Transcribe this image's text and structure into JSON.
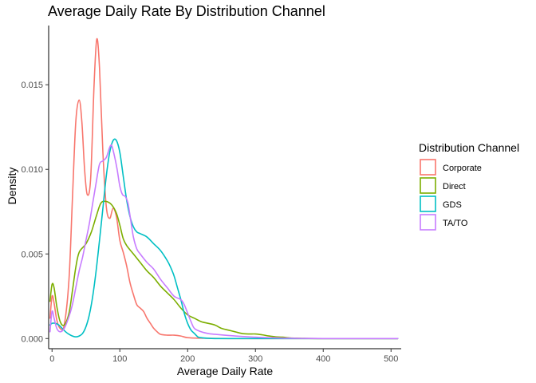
{
  "chart_data": {
    "type": "line",
    "title": "Average Daily Rate By Distribution Channel",
    "xlabel": "Average Daily Rate",
    "ylabel": "Density",
    "xlim": [
      -5,
      515
    ],
    "ylim": [
      -0.0006,
      0.0185
    ],
    "x_ticks": [
      0,
      100,
      200,
      300,
      400,
      500
    ],
    "x_tick_labels": [
      "0",
      "100",
      "200",
      "300",
      "400",
      "500"
    ],
    "y_ticks": [
      0,
      0.005,
      0.01,
      0.015
    ],
    "y_tick_labels": [
      "0.000",
      "0.005",
      "0.010",
      "0.015"
    ],
    "grid": false,
    "legend": {
      "title": "Distribution Channel",
      "placement": "right"
    },
    "series": [
      {
        "name": "Corporate",
        "color": "#F8766D",
        "points": [
          [
            -3,
            0.0012
          ],
          [
            0,
            0.0025
          ],
          [
            3,
            0.0021
          ],
          [
            7,
            0.0011
          ],
          [
            12,
            0.0006
          ],
          [
            18,
            0.0008
          ],
          [
            25,
            0.0035
          ],
          [
            30,
            0.0082
          ],
          [
            35,
            0.0128
          ],
          [
            40,
            0.0141
          ],
          [
            44,
            0.0128
          ],
          [
            48,
            0.01
          ],
          [
            52,
            0.0085
          ],
          [
            57,
            0.0095
          ],
          [
            62,
            0.015
          ],
          [
            66,
            0.0177
          ],
          [
            70,
            0.016
          ],
          [
            75,
            0.011
          ],
          [
            80,
            0.0078
          ],
          [
            85,
            0.0071
          ],
          [
            90,
            0.0077
          ],
          [
            95,
            0.0072
          ],
          [
            100,
            0.0058
          ],
          [
            105,
            0.0051
          ],
          [
            110,
            0.0043
          ],
          [
            115,
            0.0033
          ],
          [
            120,
            0.0026
          ],
          [
            125,
            0.002
          ],
          [
            130,
            0.0018
          ],
          [
            135,
            0.0016
          ],
          [
            140,
            0.0012
          ],
          [
            145,
            0.0009
          ],
          [
            150,
            0.0006
          ],
          [
            155,
            0.0004
          ],
          [
            160,
            0.00025
          ],
          [
            170,
            0.0002
          ],
          [
            180,
            0.0002
          ],
          [
            190,
            0.00015
          ],
          [
            200,
            5e-05
          ],
          [
            220,
            2e-05
          ],
          [
            260,
            0.0
          ],
          [
            300,
            0.0
          ],
          [
            400,
            0.0
          ],
          [
            510,
            0.0
          ]
        ]
      },
      {
        "name": "Direct",
        "color": "#7CAE00",
        "points": [
          [
            -3,
            0.0022
          ],
          [
            0,
            0.0032
          ],
          [
            3,
            0.003
          ],
          [
            7,
            0.0019
          ],
          [
            12,
            0.001
          ],
          [
            18,
            0.0008
          ],
          [
            25,
            0.0015
          ],
          [
            30,
            0.0028
          ],
          [
            35,
            0.0042
          ],
          [
            40,
            0.0051
          ],
          [
            50,
            0.0056
          ],
          [
            58,
            0.0063
          ],
          [
            65,
            0.0072
          ],
          [
            72,
            0.008
          ],
          [
            80,
            0.0081
          ],
          [
            88,
            0.0079
          ],
          [
            95,
            0.0074
          ],
          [
            100,
            0.0067
          ],
          [
            105,
            0.0059
          ],
          [
            110,
            0.0055
          ],
          [
            120,
            0.005
          ],
          [
            130,
            0.0045
          ],
          [
            140,
            0.004
          ],
          [
            150,
            0.0036
          ],
          [
            160,
            0.0031
          ],
          [
            170,
            0.0027
          ],
          [
            180,
            0.0023
          ],
          [
            190,
            0.0018
          ],
          [
            200,
            0.0014
          ],
          [
            210,
            0.0012
          ],
          [
            220,
            0.001
          ],
          [
            230,
            0.0009
          ],
          [
            240,
            0.0008
          ],
          [
            250,
            0.0006
          ],
          [
            260,
            0.0005
          ],
          [
            270,
            0.0004
          ],
          [
            280,
            0.0003
          ],
          [
            290,
            0.00027
          ],
          [
            300,
            0.00027
          ],
          [
            310,
            0.00022
          ],
          [
            320,
            0.00015
          ],
          [
            330,
            0.0001
          ],
          [
            340,
            8e-05
          ],
          [
            350,
            4e-05
          ],
          [
            360,
            2e-05
          ],
          [
            400,
            0.0
          ],
          [
            510,
            0.0
          ]
        ]
      },
      {
        "name": "GDS",
        "color": "#00BFC4",
        "points": [
          [
            -3,
            0.0008
          ],
          [
            0,
            0.0009
          ],
          [
            5,
            0.0009
          ],
          [
            10,
            0.0008
          ],
          [
            15,
            0.0006
          ],
          [
            20,
            0.0004
          ],
          [
            25,
            0.00025
          ],
          [
            30,
            0.00015
          ],
          [
            35,
            0.0001
          ],
          [
            40,
            0.00015
          ],
          [
            45,
            0.0003
          ],
          [
            50,
            0.0007
          ],
          [
            55,
            0.0014
          ],
          [
            60,
            0.0025
          ],
          [
            65,
            0.004
          ],
          [
            70,
            0.0058
          ],
          [
            75,
            0.0077
          ],
          [
            80,
            0.0096
          ],
          [
            85,
            0.011
          ],
          [
            90,
            0.0117
          ],
          [
            95,
            0.0117
          ],
          [
            100,
            0.011
          ],
          [
            105,
            0.0096
          ],
          [
            110,
            0.0082
          ],
          [
            115,
            0.0072
          ],
          [
            120,
            0.0066
          ],
          [
            125,
            0.0063
          ],
          [
            130,
            0.0062
          ],
          [
            140,
            0.006
          ],
          [
            150,
            0.0056
          ],
          [
            160,
            0.0052
          ],
          [
            170,
            0.0046
          ],
          [
            175,
            0.0042
          ],
          [
            180,
            0.0037
          ],
          [
            185,
            0.003
          ],
          [
            190,
            0.0023
          ],
          [
            195,
            0.0015
          ],
          [
            200,
            0.0009
          ],
          [
            205,
            0.0005
          ],
          [
            210,
            0.0003
          ],
          [
            215,
            0.0001
          ],
          [
            220,
            5e-05
          ],
          [
            240,
            0.0
          ],
          [
            300,
            0.0
          ],
          [
            400,
            0.0
          ],
          [
            510,
            0.0
          ]
        ]
      },
      {
        "name": "TA/TO",
        "color": "#C77CFF",
        "points": [
          [
            -3,
            0.0004
          ],
          [
            0,
            0.0016
          ],
          [
            3,
            0.0012
          ],
          [
            7,
            0.0006
          ],
          [
            12,
            0.0004
          ],
          [
            18,
            0.0006
          ],
          [
            25,
            0.0013
          ],
          [
            30,
            0.002
          ],
          [
            35,
            0.003
          ],
          [
            40,
            0.004
          ],
          [
            45,
            0.0048
          ],
          [
            50,
            0.0058
          ],
          [
            55,
            0.0068
          ],
          [
            60,
            0.008
          ],
          [
            65,
            0.0092
          ],
          [
            70,
            0.0103
          ],
          [
            75,
            0.0105
          ],
          [
            80,
            0.0107
          ],
          [
            85,
            0.0113
          ],
          [
            88,
            0.0114
          ],
          [
            92,
            0.0108
          ],
          [
            96,
            0.01
          ],
          [
            100,
            0.009
          ],
          [
            104,
            0.0085
          ],
          [
            108,
            0.0084
          ],
          [
            112,
            0.008
          ],
          [
            116,
            0.007
          ],
          [
            120,
            0.006
          ],
          [
            125,
            0.0053
          ],
          [
            130,
            0.005
          ],
          [
            140,
            0.0045
          ],
          [
            150,
            0.0041
          ],
          [
            160,
            0.0035
          ],
          [
            170,
            0.003
          ],
          [
            180,
            0.0025
          ],
          [
            190,
            0.0023
          ],
          [
            195,
            0.002
          ],
          [
            200,
            0.0015
          ],
          [
            205,
            0.001
          ],
          [
            210,
            0.0006
          ],
          [
            220,
            0.0004
          ],
          [
            230,
            0.0003
          ],
          [
            240,
            0.00025
          ],
          [
            260,
            0.00018
          ],
          [
            280,
            0.00012
          ],
          [
            300,
            8e-05
          ],
          [
            320,
            5e-05
          ],
          [
            350,
            2e-05
          ],
          [
            400,
            0.0
          ],
          [
            510,
            0.0
          ]
        ]
      }
    ]
  }
}
